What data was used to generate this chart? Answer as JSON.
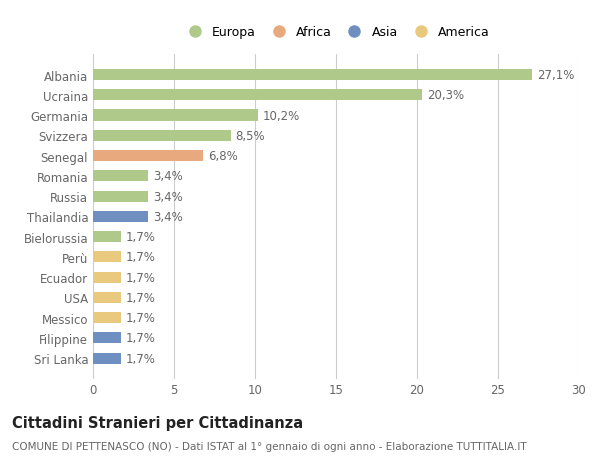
{
  "countries": [
    "Albania",
    "Ucraina",
    "Germania",
    "Svizzera",
    "Senegal",
    "Romania",
    "Russia",
    "Thailandia",
    "Bielorussia",
    "Perù",
    "Ecuador",
    "USA",
    "Messico",
    "Filippine",
    "Sri Lanka"
  ],
  "values": [
    27.1,
    20.3,
    10.2,
    8.5,
    6.8,
    3.4,
    3.4,
    3.4,
    1.7,
    1.7,
    1.7,
    1.7,
    1.7,
    1.7,
    1.7
  ],
  "labels": [
    "27,1%",
    "20,3%",
    "10,2%",
    "8,5%",
    "6,8%",
    "3,4%",
    "3,4%",
    "3,4%",
    "1,7%",
    "1,7%",
    "1,7%",
    "1,7%",
    "1,7%",
    "1,7%",
    "1,7%"
  ],
  "continents": [
    "Europa",
    "Europa",
    "Europa",
    "Europa",
    "Africa",
    "Europa",
    "Europa",
    "Asia",
    "Europa",
    "America",
    "America",
    "America",
    "America",
    "Asia",
    "Asia"
  ],
  "continent_colors": {
    "Europa": "#aec98a",
    "Africa": "#e8a97e",
    "Asia": "#6e8fbf",
    "America": "#e8c97e"
  },
  "legend_order": [
    "Europa",
    "Africa",
    "Asia",
    "America"
  ],
  "xlim": [
    0,
    30
  ],
  "xticks": [
    0,
    5,
    10,
    15,
    20,
    25,
    30
  ],
  "title": "Cittadini Stranieri per Cittadinanza",
  "subtitle": "COMUNE DI PETTENASCO (NO) - Dati ISTAT al 1° gennaio di ogni anno - Elaborazione TUTTITALIA.IT",
  "background_color": "#ffffff",
  "grid_color": "#cccccc",
  "bar_height": 0.55,
  "text_color": "#666666",
  "label_fontsize": 8.5,
  "tick_fontsize": 8.5,
  "title_fontsize": 10.5,
  "subtitle_fontsize": 7.5
}
